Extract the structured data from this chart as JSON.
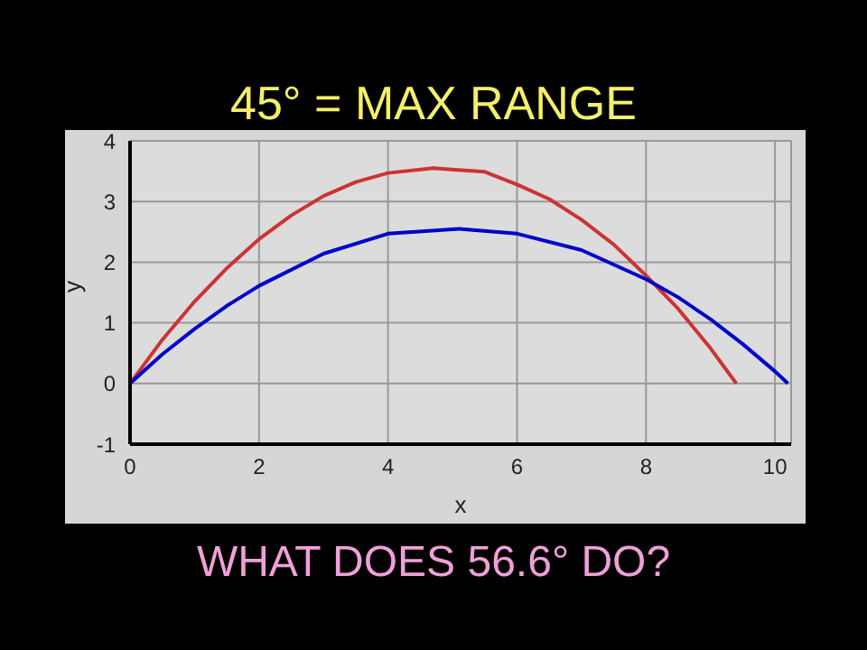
{
  "chart_data": {
    "type": "line",
    "title": "45° = MAX RANGE",
    "xlabel": "x",
    "ylabel": "y",
    "annotations": [
      "WHAT DOES 56.6° DO?"
    ],
    "xlim": [
      0,
      10.25
    ],
    "xticks": [
      0,
      2,
      4,
      6,
      8,
      10
    ],
    "ylim": [
      -1,
      4
    ],
    "yticks": [
      -1,
      0,
      1,
      2,
      3,
      4
    ],
    "grid": true,
    "marker": "none",
    "line_style": "solid",
    "series": [
      {
        "color": "#cc3333",
        "x": [
          0,
          0.5,
          1,
          1.5,
          2,
          2.5,
          3,
          3.5,
          4,
          4.7,
          5.5,
          6,
          6.5,
          7,
          7.5,
          8,
          8.5,
          9,
          9.4
        ],
        "values": [
          0,
          0.72,
          1.35,
          1.9,
          2.38,
          2.77,
          3.09,
          3.32,
          3.47,
          3.55,
          3.49,
          3.28,
          3.04,
          2.7,
          2.29,
          1.78,
          1.23,
          0.58,
          0
        ]
      },
      {
        "color": "#0000cc",
        "x": [
          0,
          0.5,
          1,
          1.5,
          2,
          3,
          4,
          5.1,
          6,
          7,
          8,
          8.5,
          9,
          9.5,
          10,
          10.2
        ],
        "values": [
          0,
          0.48,
          0.9,
          1.28,
          1.61,
          2.14,
          2.47,
          2.55,
          2.47,
          2.2,
          1.72,
          1.42,
          1.06,
          0.65,
          0.2,
          0
        ]
      }
    ]
  }
}
